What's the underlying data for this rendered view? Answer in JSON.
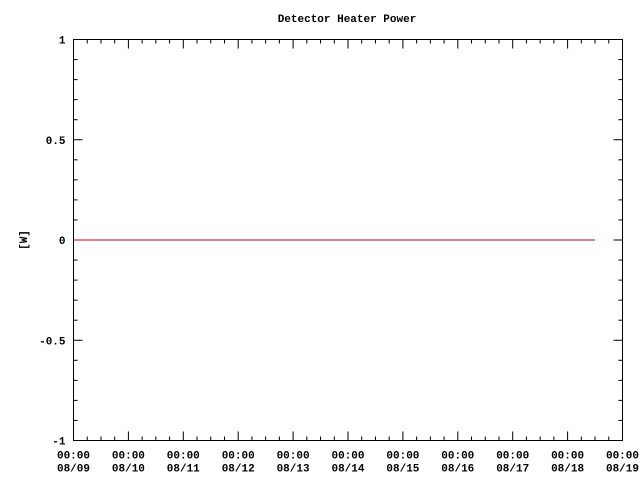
{
  "chart_data": {
    "type": "line",
    "title": "Detector Heater Power",
    "y_label": "[W]",
    "x": [
      "08/09 00:00",
      "08/18 12:00"
    ],
    "series": [
      {
        "name": "Detector Heater Power",
        "color": "#cc0000",
        "values": [
          0,
          0
        ]
      }
    ],
    "xlim": [
      "08/09 00:00",
      "08/19 00:00"
    ],
    "xticks": [
      {
        "value": "08/09 00:00",
        "label": [
          "00:00",
          "08/09"
        ]
      },
      {
        "value": "08/10 00:00",
        "label": [
          "00:00",
          "08/10"
        ]
      },
      {
        "value": "08/11 00:00",
        "label": [
          "00:00",
          "08/11"
        ]
      },
      {
        "value": "08/12 00:00",
        "label": [
          "00:00",
          "08/12"
        ]
      },
      {
        "value": "08/13 00:00",
        "label": [
          "00:00",
          "08/13"
        ]
      },
      {
        "value": "08/14 00:00",
        "label": [
          "00:00",
          "08/14"
        ]
      },
      {
        "value": "08/15 00:00",
        "label": [
          "00:00",
          "08/15"
        ]
      },
      {
        "value": "08/16 00:00",
        "label": [
          "00:00",
          "08/16"
        ]
      },
      {
        "value": "08/17 00:00",
        "label": [
          "00:00",
          "08/17"
        ]
      },
      {
        "value": "08/18 00:00",
        "label": [
          "00:00",
          "08/18"
        ]
      },
      {
        "value": "08/19 00:00",
        "label": [
          "00:00",
          "08/19"
        ]
      }
    ],
    "ylim": [
      -1,
      1
    ],
    "yticks": [
      -1,
      -0.5,
      0,
      0.5,
      1
    ]
  }
}
